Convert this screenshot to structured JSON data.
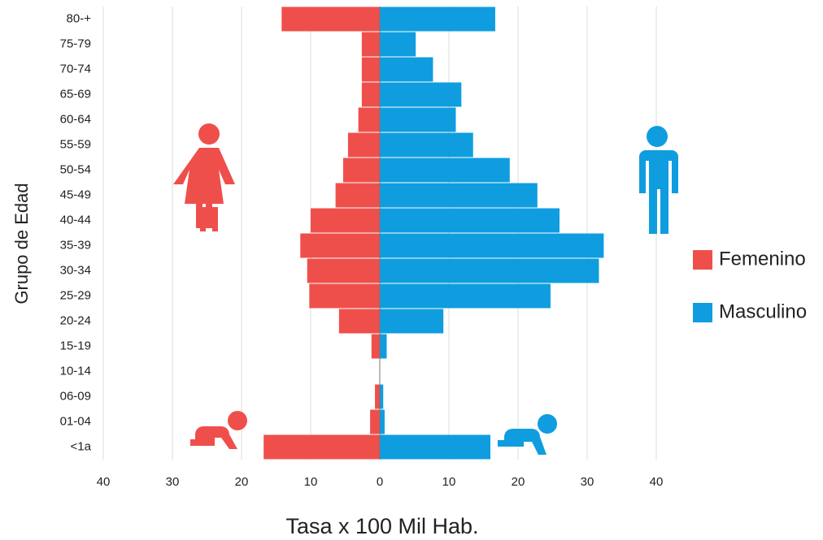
{
  "chart_data": {
    "type": "pyramid",
    "x_label": "Tasa x 100 Mil Hab.",
    "y_label": "Grupo de Edad",
    "categories": [
      "80-+",
      "75-79",
      "70-74",
      "65-69",
      "60-64",
      "55-59",
      "50-54",
      "45-49",
      "40-44",
      "35-39",
      "30-34",
      "25-29",
      "20-24",
      "15-19",
      "10-14",
      "06-09",
      "01-04",
      "<1a"
    ],
    "series": [
      {
        "name": "Femenino",
        "color": "#ef4f4b",
        "values": [
          -14.2,
          -2.6,
          -2.6,
          -2.6,
          -3.1,
          -4.6,
          -5.3,
          -6.4,
          -10.0,
          -11.5,
          -10.5,
          -10.2,
          -5.9,
          -1.2,
          0,
          -0.7,
          -1.4,
          -16.8
        ]
      },
      {
        "name": "Masculino",
        "color": "#0f9de0",
        "values": [
          16.7,
          5.2,
          7.7,
          11.8,
          11.0,
          13.5,
          18.8,
          22.8,
          26.0,
          32.4,
          31.7,
          24.7,
          9.2,
          1.0,
          0,
          0.5,
          0.7,
          16.0
        ]
      }
    ],
    "xlim": [
      -40,
      40
    ],
    "xticks": [
      {
        "value": -40,
        "label": "40"
      },
      {
        "value": -30,
        "label": "30"
      },
      {
        "value": -20,
        "label": "20"
      },
      {
        "value": -10,
        "label": "10"
      },
      0,
      10,
      20,
      30,
      40
    ],
    "grid": true
  }
}
